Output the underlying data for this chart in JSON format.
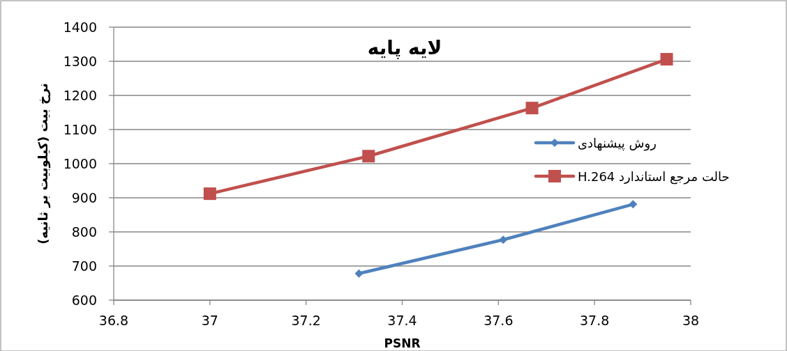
{
  "chart_data": {
    "type": "line",
    "title": "لایه پایه",
    "xlabel": "PSNR",
    "ylabel": "نرخ بیت (کیلوبیت بر ثانیه)",
    "xlim": [
      36.8,
      38
    ],
    "xticks": [
      36.8,
      37,
      37.2,
      37.4,
      37.6,
      37.8,
      38
    ],
    "ylim": [
      600,
      1400
    ],
    "yticks": [
      600,
      700,
      800,
      900,
      1000,
      1100,
      1200,
      1300,
      1400
    ],
    "grid": "y",
    "legend": "right",
    "line_style": "solid",
    "series": [
      {
        "name": "روش پیشنهادی",
        "color": "#4f81bd",
        "marker": "diamond",
        "x": [
          37.31,
          37.61,
          37.88
        ],
        "values": [
          678,
          777,
          881
        ]
      },
      {
        "name": "حالت مرجع استاندارد H.264",
        "color": "#c0504d",
        "marker": "square",
        "x": [
          37.0,
          37.33,
          37.67,
          37.95
        ],
        "values": [
          912,
          1022,
          1163,
          1306
        ]
      }
    ]
  }
}
